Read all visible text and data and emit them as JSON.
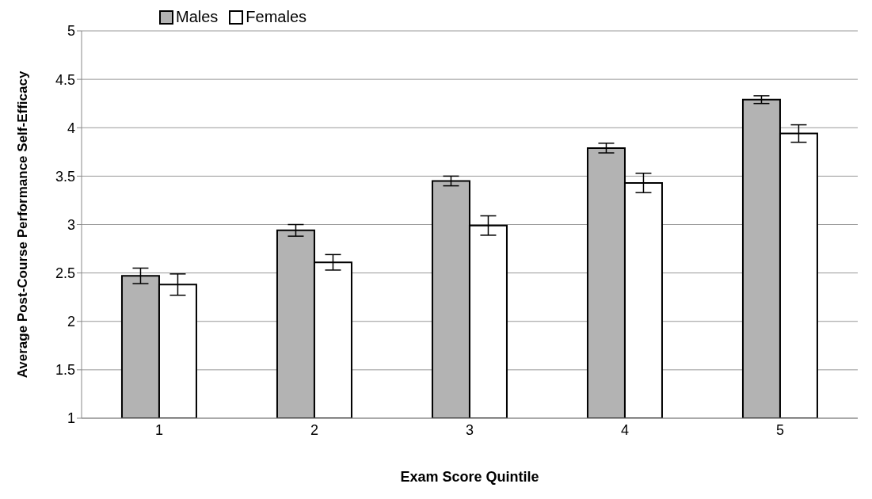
{
  "chart_data": {
    "type": "bar",
    "xlabel": "Exam Score Quintile",
    "ylabel": "Average Post-Course Performance Self-Efficacy",
    "categories": [
      "1",
      "2",
      "3",
      "4",
      "5"
    ],
    "series": [
      {
        "name": "Males",
        "color": "#b3b3b3",
        "values": [
          2.47,
          2.94,
          3.45,
          3.79,
          4.29
        ],
        "errors": [
          0.08,
          0.06,
          0.05,
          0.05,
          0.04
        ]
      },
      {
        "name": "Females",
        "color": "#ffffff",
        "values": [
          2.38,
          2.61,
          2.99,
          3.43,
          3.94
        ],
        "errors": [
          0.11,
          0.08,
          0.1,
          0.1,
          0.09
        ]
      }
    ],
    "ylim": [
      1,
      5
    ],
    "yticks": [
      1,
      1.5,
      2,
      2.5,
      3,
      3.5,
      4,
      4.5,
      5
    ],
    "grid": "y",
    "legend": "top left"
  }
}
